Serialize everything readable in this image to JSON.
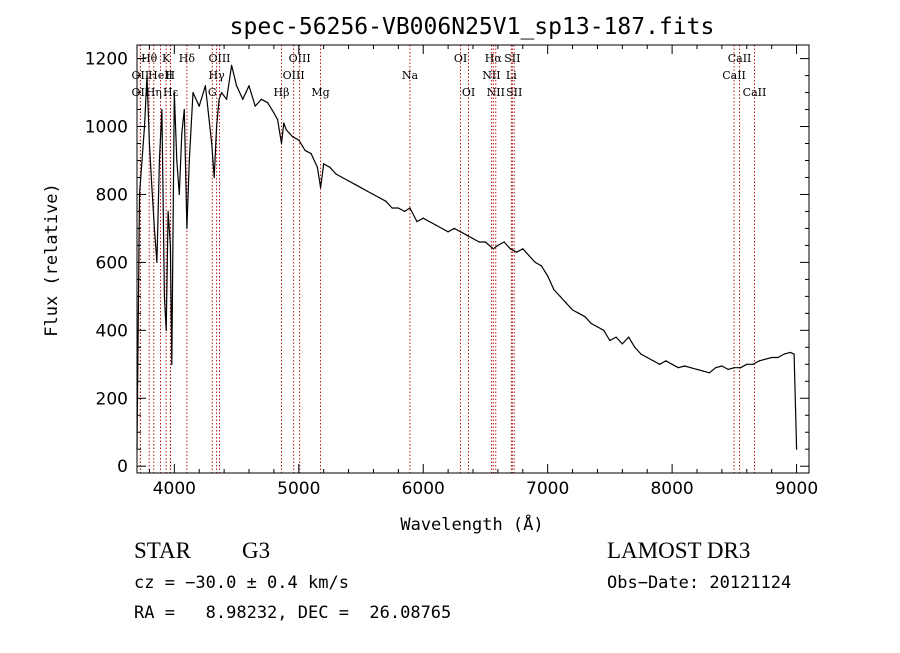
{
  "chart_data": {
    "type": "line",
    "title": "spec-56256-VB006N25V1_sp13-187.fits",
    "xlabel": "Wavelength (Å)",
    "ylabel": "Flux (relative)",
    "xlim": [
      3700,
      9100
    ],
    "ylim": [
      -20,
      1240
    ],
    "x_ticks": [
      4000,
      5000,
      6000,
      7000,
      8000,
      9000
    ],
    "y_ticks": [
      0,
      200,
      400,
      600,
      800,
      1000,
      1200
    ],
    "grid": false,
    "series": [
      {
        "name": "spectrum",
        "x": [
          3700,
          3720,
          3740,
          3760,
          3780,
          3800,
          3820,
          3840,
          3860,
          3880,
          3900,
          3920,
          3935,
          3950,
          3968,
          3980,
          4000,
          4020,
          4040,
          4060,
          4080,
          4101,
          4120,
          4150,
          4200,
          4250,
          4300,
          4320,
          4340,
          4360,
          4380,
          4420,
          4460,
          4500,
          4550,
          4600,
          4650,
          4700,
          4750,
          4800,
          4830,
          4861,
          4880,
          4900,
          4950,
          5000,
          5050,
          5100,
          5150,
          5175,
          5200,
          5250,
          5300,
          5350,
          5400,
          5450,
          5500,
          5550,
          5600,
          5650,
          5700,
          5750,
          5800,
          5850,
          5893,
          5950,
          6000,
          6050,
          6100,
          6150,
          6200,
          6250,
          6300,
          6350,
          6400,
          6450,
          6500,
          6563,
          6600,
          6650,
          6700,
          6750,
          6800,
          6850,
          6900,
          6950,
          7000,
          7050,
          7100,
          7150,
          7200,
          7250,
          7300,
          7350,
          7400,
          7450,
          7500,
          7550,
          7600,
          7650,
          7700,
          7750,
          7800,
          7850,
          7900,
          7950,
          8000,
          8050,
          8100,
          8150,
          8200,
          8250,
          8300,
          8350,
          8400,
          8450,
          8500,
          8550,
          8600,
          8650,
          8700,
          8750,
          8800,
          8850,
          8900,
          8950,
          8980,
          9000
        ],
        "y": [
          50,
          800,
          900,
          1000,
          1150,
          950,
          820,
          700,
          600,
          900,
          1050,
          500,
          400,
          750,
          650,
          300,
          1100,
          900,
          800,
          980,
          1050,
          700,
          900,
          1100,
          1060,
          1120,
          950,
          850,
          1000,
          1080,
          1100,
          1080,
          1180,
          1120,
          1080,
          1120,
          1060,
          1080,
          1070,
          1040,
          1020,
          950,
          1010,
          990,
          970,
          960,
          930,
          920,
          880,
          820,
          890,
          880,
          860,
          850,
          840,
          830,
          820,
          810,
          800,
          790,
          780,
          760,
          760,
          750,
          760,
          720,
          730,
          720,
          710,
          700,
          690,
          700,
          690,
          680,
          670,
          660,
          660,
          640,
          650,
          660,
          640,
          630,
          640,
          620,
          600,
          590,
          560,
          520,
          500,
          480,
          460,
          450,
          440,
          420,
          410,
          400,
          370,
          380,
          360,
          380,
          350,
          330,
          320,
          310,
          300,
          310,
          300,
          290,
          295,
          290,
          285,
          280,
          275,
          290,
          295,
          285,
          290,
          290,
          300,
          300,
          310,
          315,
          320,
          320,
          330,
          335,
          330,
          50
        ]
      }
    ],
    "line_labels": [
      {
        "name": "Hθ",
        "x": 3798,
        "row": 1
      },
      {
        "name": "OII",
        "x": 3727,
        "row": 2
      },
      {
        "name": "OII",
        "x": 3727,
        "row": 3
      },
      {
        "name": "Hη",
        "x": 3835,
        "row": 3
      },
      {
        "name": "K",
        "x": 3934,
        "row": 1
      },
      {
        "name": "HeII",
        "x": 3889,
        "row": 2
      },
      {
        "name": "Hε",
        "x": 3970,
        "row": 3
      },
      {
        "name": "Hδ",
        "x": 4101,
        "row": 1
      },
      {
        "name": "H",
        "x": 3968,
        "row": 2
      },
      {
        "name": "OIII",
        "x": 4363,
        "row": 1
      },
      {
        "name": "Hγ",
        "x": 4340,
        "row": 2
      },
      {
        "name": "G",
        "x": 4305,
        "row": 3
      },
      {
        "name": "OIII",
        "x": 5007,
        "row": 1
      },
      {
        "name": "OIII",
        "x": 4959,
        "row": 2
      },
      {
        "name": "Hβ",
        "x": 4861,
        "row": 3
      },
      {
        "name": "Mg",
        "x": 5175,
        "row": 3
      },
      {
        "name": "Na",
        "x": 5893,
        "row": 2
      },
      {
        "name": "OI",
        "x": 6300,
        "row": 1
      },
      {
        "name": "OI",
        "x": 6364,
        "row": 3
      },
      {
        "name": "Hα",
        "x": 6563,
        "row": 1
      },
      {
        "name": "NII",
        "x": 6548,
        "row": 2
      },
      {
        "name": "NII",
        "x": 6583,
        "row": 3
      },
      {
        "name": "SII",
        "x": 6716,
        "row": 1
      },
      {
        "name": "Li",
        "x": 6708,
        "row": 2
      },
      {
        "name": "SII",
        "x": 6731,
        "row": 3
      },
      {
        "name": "CaII",
        "x": 8542,
        "row": 1
      },
      {
        "name": "CaII",
        "x": 8498,
        "row": 2
      },
      {
        "name": "CaII",
        "x": 8662,
        "row": 3
      }
    ],
    "line_marker_color": "#b00000",
    "line_color": "#000000"
  },
  "info": {
    "object_class": "STAR",
    "subclass": "G3",
    "survey": "LAMOST DR3",
    "redshift": "cz = −30.0 ± 0.4 km/s",
    "obs_date": "Obs−Date: 20121124",
    "coords": "RA =   8.98232, DEC =  26.08765"
  }
}
